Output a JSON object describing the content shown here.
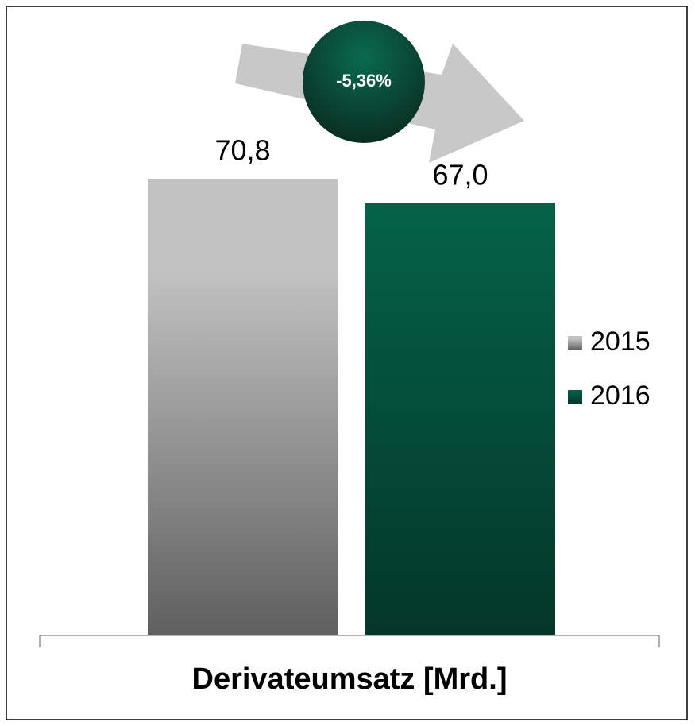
{
  "chart_data": {
    "type": "bar",
    "categories": [
      "Derivateumsatz [Mrd.]"
    ],
    "series": [
      {
        "name": "2015",
        "color": "#c2c2c2",
        "values": [
          70.8
        ],
        "value_labels": [
          "70,8"
        ]
      },
      {
        "name": "2016",
        "color": "#05624a",
        "values": [
          67.0
        ],
        "value_labels": [
          "67,0"
        ]
      }
    ],
    "annotations": [
      "-5,36%"
    ],
    "legend": "right"
  }
}
